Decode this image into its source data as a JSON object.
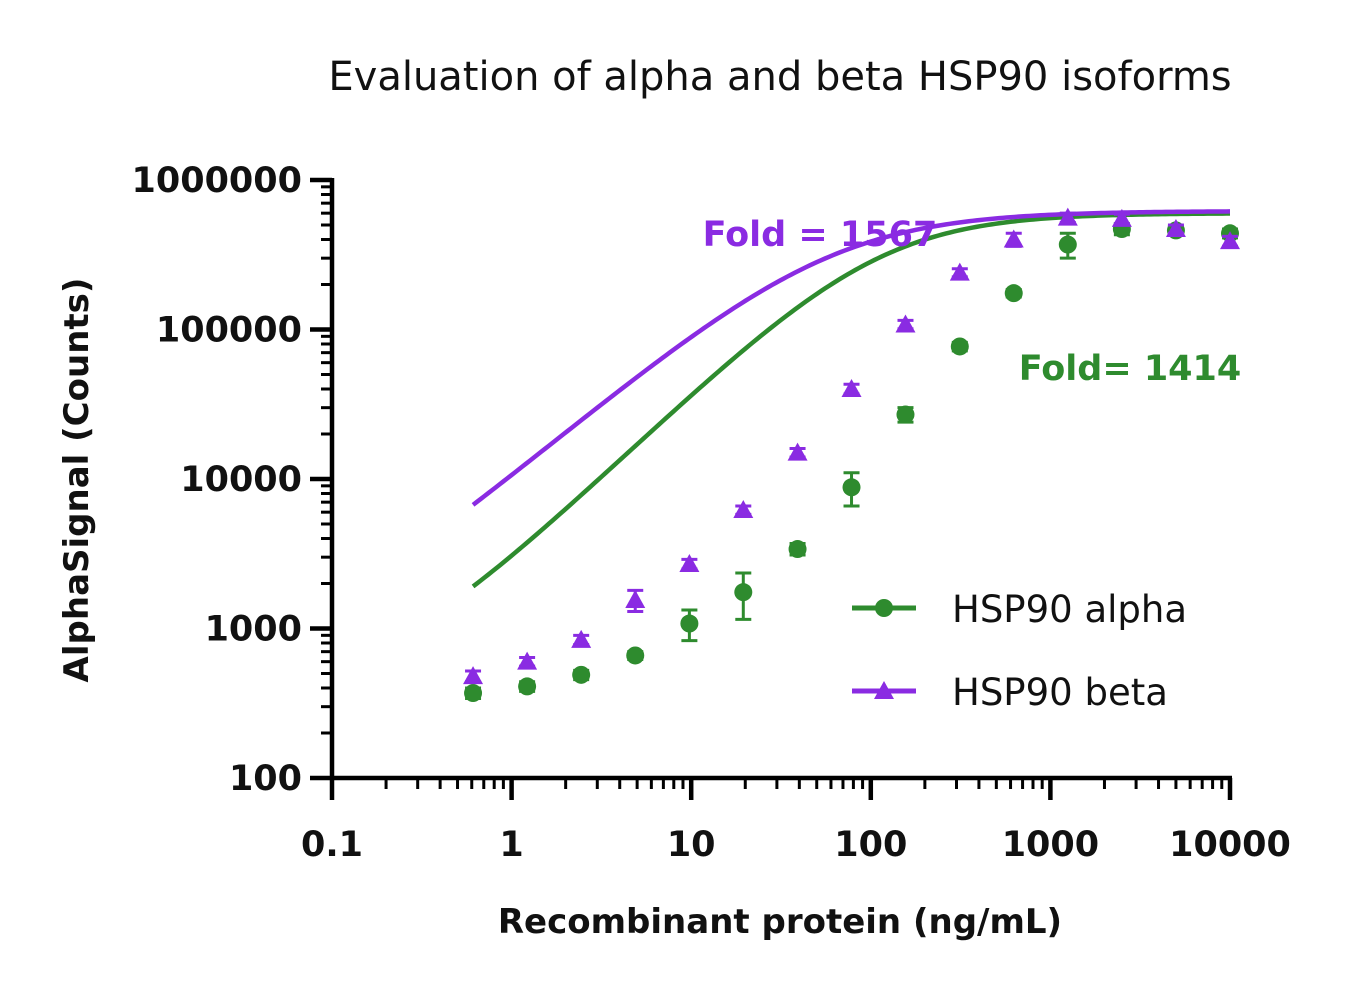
{
  "chart_data": {
    "type": "scatter",
    "title": "Evaluation of alpha and beta HSP90 isoforms",
    "xlabel": "Recombinant protein (ng/mL)",
    "ylabel": "AlphaSignal (Counts)",
    "xscale": "log",
    "yscale": "log",
    "xlim": [
      0.1,
      10000
    ],
    "ylim": [
      100,
      1000000
    ],
    "x_ticks": [
      {
        "value": 0.1,
        "label": "0.1"
      },
      {
        "value": 1,
        "label": "1"
      },
      {
        "value": 10,
        "label": "10"
      },
      {
        "value": 100,
        "label": "100"
      },
      {
        "value": 1000,
        "label": "1000"
      },
      {
        "value": 10000,
        "label": "10000"
      }
    ],
    "y_ticks": [
      {
        "value": 100,
        "label": "100"
      },
      {
        "value": 1000,
        "label": "1000"
      },
      {
        "value": 10000,
        "label": "10000"
      },
      {
        "value": 100000,
        "label": "100000"
      },
      {
        "value": 1000000,
        "label": "1000000"
      }
    ],
    "legend_position": "bottom-right",
    "series": [
      {
        "name": "HSP90 alpha",
        "color": "#2e8b2e",
        "marker": "circle",
        "fit": {
          "bottom": 390,
          "top": 600000,
          "ec50": 110,
          "hill": 1.15
        },
        "points": [
          {
            "x": 0.61,
            "y": 370,
            "err": 30
          },
          {
            "x": 1.22,
            "y": 410,
            "err": 30
          },
          {
            "x": 2.44,
            "y": 490,
            "err": 35
          },
          {
            "x": 4.88,
            "y": 660,
            "err": 40
          },
          {
            "x": 9.77,
            "y": 1080,
            "err": 250
          },
          {
            "x": 19.5,
            "y": 1750,
            "err": 600
          },
          {
            "x": 39.1,
            "y": 3400,
            "err": 300
          },
          {
            "x": 78.1,
            "y": 8800,
            "err": 2200
          },
          {
            "x": 156,
            "y": 27000,
            "err": 3000
          },
          {
            "x": 313,
            "y": 77000,
            "err": 5000
          },
          {
            "x": 625,
            "y": 175000,
            "err": 10000
          },
          {
            "x": 1250,
            "y": 370000,
            "err": 70000
          },
          {
            "x": 2500,
            "y": 470000,
            "err": 40000
          },
          {
            "x": 5000,
            "y": 460000,
            "err": 30000
          },
          {
            "x": 10000,
            "y": 440000,
            "err": 30000
          }
        ]
      },
      {
        "name": "HSP90 beta",
        "color": "#8a2be2",
        "marker": "triangle",
        "fit": {
          "bottom": 480,
          "top": 620000,
          "ec50": 60,
          "hill": 1.0
        },
        "points": [
          {
            "x": 0.61,
            "y": 480,
            "err": 40
          },
          {
            "x": 1.22,
            "y": 600,
            "err": 40
          },
          {
            "x": 2.44,
            "y": 840,
            "err": 60
          },
          {
            "x": 4.88,
            "y": 1550,
            "err": 250
          },
          {
            "x": 9.77,
            "y": 2700,
            "err": 200
          },
          {
            "x": 19.5,
            "y": 6200,
            "err": 400
          },
          {
            "x": 39.1,
            "y": 15000,
            "err": 1000
          },
          {
            "x": 78.1,
            "y": 40000,
            "err": 3000
          },
          {
            "x": 156,
            "y": 108000,
            "err": 7000
          },
          {
            "x": 313,
            "y": 240000,
            "err": 15000
          },
          {
            "x": 625,
            "y": 400000,
            "err": 40000
          },
          {
            "x": 1250,
            "y": 560000,
            "err": 40000
          },
          {
            "x": 2500,
            "y": 550000,
            "err": 40000
          },
          {
            "x": 5000,
            "y": 470000,
            "err": 30000
          },
          {
            "x": 10000,
            "y": 390000,
            "err": 30000
          }
        ]
      }
    ],
    "annotations": [
      {
        "text": "Fold = 1567",
        "series": "HSP90 beta"
      },
      {
        "text": "Fold= 1414",
        "series": "HSP90 alpha"
      }
    ]
  }
}
